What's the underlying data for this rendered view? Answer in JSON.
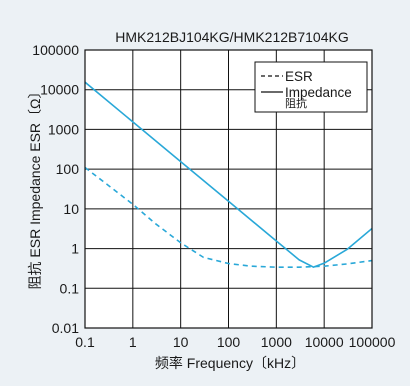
{
  "chart_data": {
    "type": "line",
    "title": "HMK212BJ104KG/HMK212B7104KG",
    "xlabel": "频率 Frequency〔kHz〕",
    "ylabel": "阻抗 ESR Impedance ESR〔Ω〕",
    "x_scale": "log",
    "y_scale": "log",
    "xlim": [
      0.1,
      100000
    ],
    "ylim": [
      0.01,
      100000
    ],
    "x_ticks": [
      0.1,
      1,
      10,
      100,
      1000,
      10000,
      100000
    ],
    "x_tick_labels": [
      "0.1",
      "1",
      "10",
      "100",
      "1000",
      "10000",
      "100000"
    ],
    "y_ticks": [
      0.01,
      0.1,
      1,
      10,
      100,
      1000,
      10000,
      100000
    ],
    "y_tick_labels": [
      "0.01",
      "0.1",
      "1",
      "10",
      "100",
      "1000",
      "10000",
      "100000"
    ],
    "grid": true,
    "legend_position": "top-right",
    "legend_sub_label": "阻抗",
    "series": [
      {
        "name": "ESR",
        "style": "dashed",
        "color": "#29a8d8",
        "x": [
          0.1,
          0.3,
          1,
          3,
          10,
          30,
          100,
          300,
          1000,
          3000,
          10000,
          30000,
          100000
        ],
        "y": [
          110,
          40,
          13,
          4.2,
          1.4,
          0.6,
          0.42,
          0.36,
          0.34,
          0.34,
          0.36,
          0.41,
          0.5
        ]
      },
      {
        "name": "Impedance",
        "style": "solid",
        "color": "#29a8d8",
        "x": [
          0.1,
          1,
          10,
          100,
          1000,
          3000,
          6000,
          10000,
          30000,
          100000
        ],
        "y": [
          15500,
          1550,
          155,
          15.5,
          1.55,
          0.52,
          0.34,
          0.43,
          0.95,
          3.2
        ]
      }
    ]
  }
}
